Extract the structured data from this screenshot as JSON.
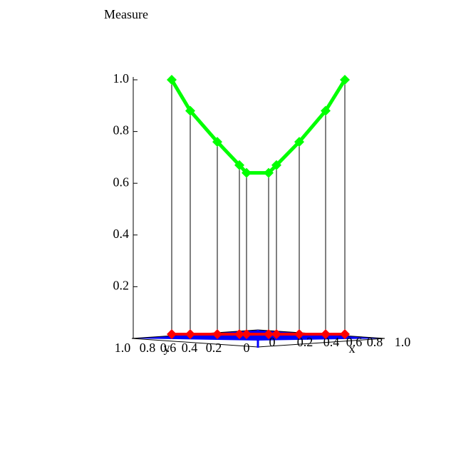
{
  "chart_data": {
    "type": "stem3d",
    "title": "Measure",
    "categories": [
      null,
      null,
      null,
      null,
      null,
      null,
      null,
      null,
      null,
      null
    ],
    "values": [
      1.0,
      0.88,
      0.76,
      0.67,
      0.64,
      0.64,
      0.67,
      0.76,
      0.88,
      1.0
    ],
    "color": "#00ff00",
    "base_color": "#ff0000",
    "floor_color": "#0000ff",
    "zlim": [
      0,
      1
    ],
    "zticks": [
      0.2,
      0.4,
      0.6,
      0.8,
      {
        "value": 1,
        "label": "1.0"
      }
    ],
    "xlabel": "x",
    "ylabel": "y",
    "xticks": [
      0,
      0.2,
      0.4,
      0.6,
      0.8,
      {
        "value": 1,
        "label": "1.0"
      }
    ],
    "yticks": [
      0,
      0.2,
      0.4,
      0.6,
      0.8,
      {
        "value": 1,
        "label": "1.0"
      }
    ]
  }
}
